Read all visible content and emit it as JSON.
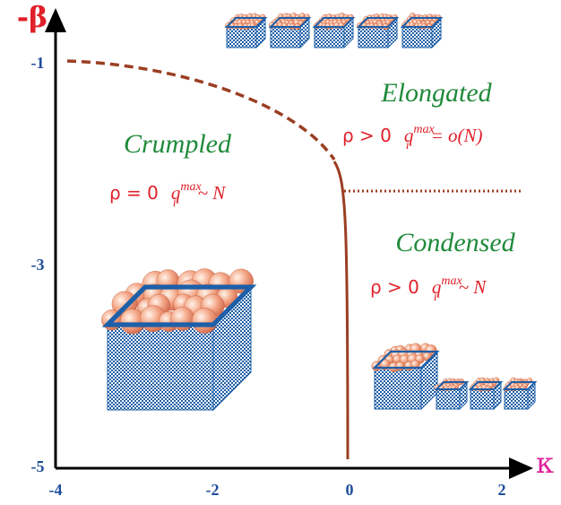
{
  "axes": {
    "y_label": "-β",
    "x_label": "κ",
    "y_ticks": [
      "-1",
      "-3",
      "-5"
    ],
    "x_ticks": [
      "-4",
      "-2",
      "0",
      "2"
    ]
  },
  "regions": [
    {
      "name": "Elongated",
      "rho": "ρ > 0",
      "q": "q",
      "sub": "i",
      "sup": "max",
      "rel": "= o(N)"
    },
    {
      "name": "Crumpled",
      "rho": "ρ = 0",
      "q": "q",
      "sub": "i",
      "sup": "max",
      "rel": "~ N"
    },
    {
      "name": "Condensed",
      "rho": "ρ > 0",
      "q": "q",
      "sub": "i",
      "sup": "max",
      "rel": "~ N"
    }
  ]
}
